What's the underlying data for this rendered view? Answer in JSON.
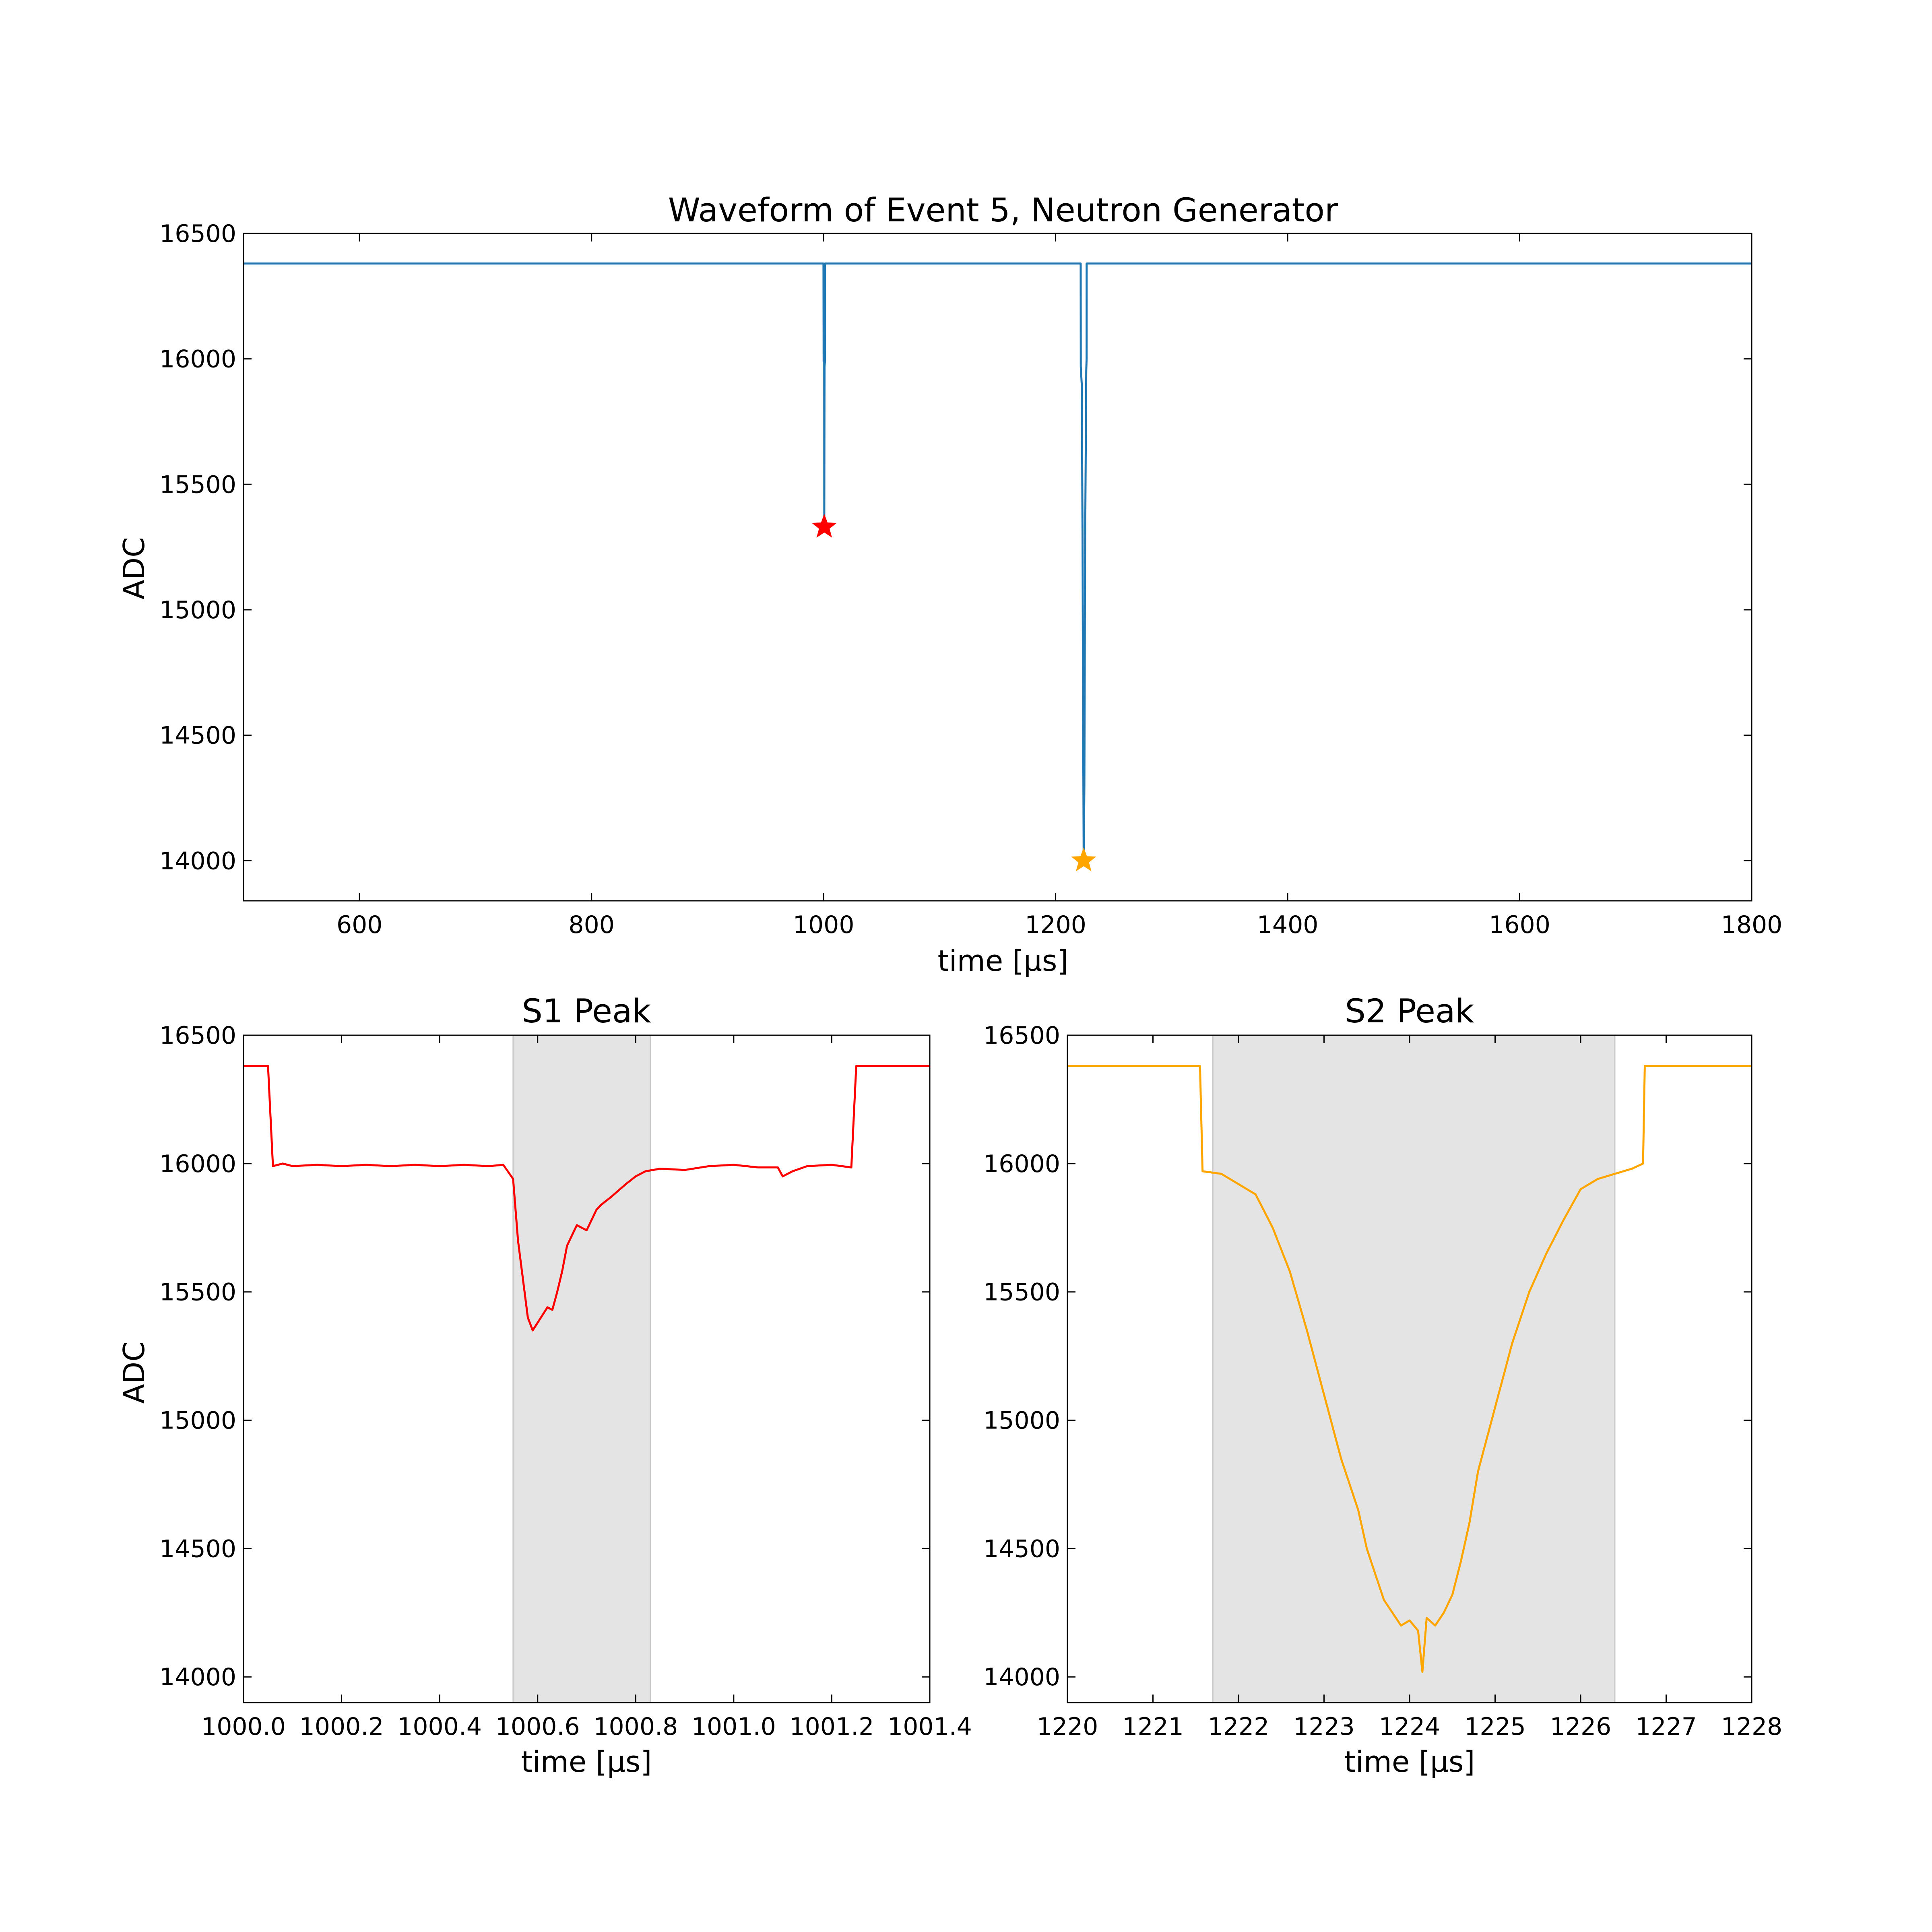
{
  "chart_data": [
    {
      "id": "overview",
      "type": "line",
      "title": "Waveform of Event 5, Neutron Generator",
      "xlabel": "time [µs]",
      "ylabel": "ADC",
      "xlim": [
        500,
        1800
      ],
      "ylim": [
        13840,
        16500
      ],
      "xticks": [
        600,
        800,
        1000,
        1200,
        1400,
        1600,
        1800
      ],
      "xtick_labels": [
        "600",
        "800",
        "1000",
        "1200",
        "1400",
        "1600",
        "1800"
      ],
      "yticks": [
        14000,
        14500,
        15000,
        15500,
        16000,
        16500
      ],
      "ytick_labels": [
        "14000",
        "14500",
        "15000",
        "15500",
        "16000",
        "16500"
      ],
      "grid": false,
      "series": [
        {
          "color": "#1f77b4",
          "x": [
            500,
            999.9,
            1000.05,
            1000.55,
            1000.6,
            1000.8,
            1001.2,
            1001.25,
            1221.6,
            1221.7,
            1222.5,
            1223.2,
            1223.8,
            1224.2,
            1224.8,
            1225.4,
            1226.4,
            1226.7,
            1226.75,
            1800
          ],
          "y": [
            16380,
            16380,
            15990,
            15990,
            15340,
            15970,
            15990,
            16380,
            16380,
            15970,
            15900,
            15300,
            14500,
            14000,
            14300,
            15200,
            15950,
            16000,
            16380,
            16380
          ]
        }
      ],
      "markers": [
        {
          "label": "S1 peak",
          "x": 1000.6,
          "y": 15330,
          "symbol": "star",
          "color": "#ff0000"
        },
        {
          "label": "S2 peak",
          "x": 1224.2,
          "y": 14000,
          "symbol": "star",
          "color": "#ffa500"
        }
      ]
    },
    {
      "id": "s1",
      "type": "line",
      "title": "S1 Peak",
      "xlabel": "time [µs]",
      "ylabel": "ADC",
      "xlim": [
        1000.0,
        1001.4
      ],
      "ylim": [
        13900,
        16500
      ],
      "xticks": [
        1000.0,
        1000.2,
        1000.4,
        1000.6,
        1000.8,
        1001.0,
        1001.2,
        1001.4
      ],
      "xtick_labels": [
        "1000.0",
        "1000.2",
        "1000.4",
        "1000.6",
        "1000.8",
        "1001.0",
        "1001.2",
        "1001.4"
      ],
      "yticks": [
        14000,
        14500,
        15000,
        15500,
        16000,
        16500
      ],
      "ytick_labels": [
        "14000",
        "14500",
        "15000",
        "15500",
        "16000",
        "16500"
      ],
      "grid": false,
      "shaded_region": [
        1000.55,
        1000.83
      ],
      "series": [
        {
          "color": "#ff0000",
          "x": [
            1000.0,
            1000.05,
            1000.06,
            1000.08,
            1000.1,
            1000.15,
            1000.2,
            1000.25,
            1000.3,
            1000.35,
            1000.4,
            1000.45,
            1000.5,
            1000.53,
            1000.55,
            1000.56,
            1000.57,
            1000.58,
            1000.59,
            1000.6,
            1000.62,
            1000.63,
            1000.64,
            1000.65,
            1000.66,
            1000.68,
            1000.7,
            1000.72,
            1000.73,
            1000.75,
            1000.78,
            1000.8,
            1000.82,
            1000.85,
            1000.9,
            1000.95,
            1001.0,
            1001.05,
            1001.09,
            1001.1,
            1001.12,
            1001.15,
            1001.2,
            1001.24,
            1001.25,
            1001.3,
            1001.4
          ],
          "y": [
            16380,
            16380,
            15990,
            16000,
            15990,
            15995,
            15990,
            15995,
            15990,
            15995,
            15990,
            15995,
            15990,
            15995,
            15940,
            15700,
            15550,
            15400,
            15350,
            15380,
            15440,
            15430,
            15500,
            15580,
            15680,
            15760,
            15740,
            15820,
            15840,
            15870,
            15920,
            15950,
            15970,
            15980,
            15975,
            15990,
            15995,
            15985,
            15985,
            15950,
            15970,
            15990,
            15995,
            15985,
            16380,
            16380,
            16380
          ]
        }
      ]
    },
    {
      "id": "s2",
      "type": "line",
      "title": "S2 Peak",
      "xlabel": "time [µs]",
      "ylabel": "",
      "xlim": [
        1220,
        1228
      ],
      "ylim": [
        13900,
        16500
      ],
      "xticks": [
        1220,
        1221,
        1222,
        1223,
        1224,
        1225,
        1226,
        1227,
        1228
      ],
      "xtick_labels": [
        "1220",
        "1221",
        "1222",
        "1223",
        "1224",
        "1225",
        "1226",
        "1227",
        "1228"
      ],
      "yticks": [
        14000,
        14500,
        15000,
        15500,
        16000,
        16500
      ],
      "ytick_labels": [
        "14000",
        "14500",
        "15000",
        "15500",
        "16000",
        "16500"
      ],
      "grid": false,
      "shaded_region": [
        1221.7,
        1226.4
      ],
      "series": [
        {
          "color": "#ffa500",
          "x": [
            1220,
            1221.55,
            1221.58,
            1221.8,
            1222.0,
            1222.2,
            1222.4,
            1222.6,
            1222.8,
            1223.0,
            1223.2,
            1223.4,
            1223.5,
            1223.6,
            1223.7,
            1223.8,
            1223.9,
            1224.0,
            1224.1,
            1224.15,
            1224.2,
            1224.3,
            1224.4,
            1224.5,
            1224.6,
            1224.7,
            1224.8,
            1225.0,
            1225.2,
            1225.4,
            1225.6,
            1225.8,
            1226.0,
            1226.2,
            1226.4,
            1226.6,
            1226.73,
            1226.75,
            1228
          ],
          "y": [
            16380,
            16380,
            15970,
            15960,
            15920,
            15880,
            15750,
            15580,
            15350,
            15100,
            14850,
            14650,
            14500,
            14400,
            14300,
            14250,
            14200,
            14220,
            14180,
            14020,
            14230,
            14200,
            14250,
            14320,
            14450,
            14600,
            14800,
            15050,
            15300,
            15500,
            15650,
            15780,
            15900,
            15940,
            15960,
            15980,
            16000,
            16380,
            16380
          ]
        }
      ]
    }
  ]
}
